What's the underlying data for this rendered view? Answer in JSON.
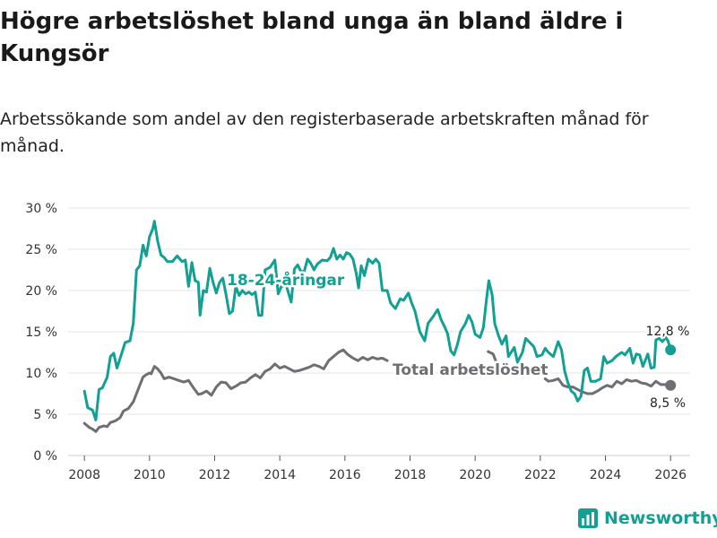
{
  "title": "Högre arbetslöshet bland unga än bland äldre i Kungsör",
  "subtitle": "Arbetssökande som andel av den registerbaserade arbetskraften månad för månad.",
  "brand": "Newsworthy",
  "colors": {
    "youth": "#11a093",
    "total": "#6e6e73",
    "brand": "#12a095"
  },
  "chart_data": {
    "type": "line",
    "x_ticks": [
      "2008",
      "2010",
      "2012",
      "2014",
      "2016",
      "2018",
      "2020",
      "2022",
      "2024",
      "2026"
    ],
    "y_ticks": [
      "0 %",
      "5 %",
      "10 %",
      "15 %",
      "20 %",
      "25 %",
      "30 %"
    ],
    "xlim": [
      2007.5,
      2026.6
    ],
    "ylim": [
      0,
      30
    ],
    "series": [
      {
        "name": "18-24-åringar",
        "label": "18-24-åringar",
        "end_label": "12,8 %",
        "points": [
          [
            2008.0,
            7.8
          ],
          [
            2008.1,
            5.8
          ],
          [
            2008.25,
            5.5
          ],
          [
            2008.35,
            4.3
          ],
          [
            2008.45,
            8.0
          ],
          [
            2008.55,
            8.2
          ],
          [
            2008.7,
            9.5
          ],
          [
            2008.8,
            12.0
          ],
          [
            2008.9,
            12.4
          ],
          [
            2009.0,
            10.6
          ],
          [
            2009.1,
            11.8
          ],
          [
            2009.25,
            13.7
          ],
          [
            2009.4,
            13.9
          ],
          [
            2009.5,
            16.0
          ],
          [
            2009.6,
            22.5
          ],
          [
            2009.7,
            23.0
          ],
          [
            2009.8,
            25.5
          ],
          [
            2009.9,
            24.2
          ],
          [
            2010.0,
            26.5
          ],
          [
            2010.1,
            27.5
          ],
          [
            2010.15,
            28.4
          ],
          [
            2010.25,
            26.0
          ],
          [
            2010.35,
            24.3
          ],
          [
            2010.45,
            24.0
          ],
          [
            2010.55,
            23.5
          ],
          [
            2010.7,
            23.5
          ],
          [
            2010.85,
            24.2
          ],
          [
            2011.0,
            23.5
          ],
          [
            2011.1,
            23.7
          ],
          [
            2011.2,
            20.5
          ],
          [
            2011.3,
            23.4
          ],
          [
            2011.4,
            21.2
          ],
          [
            2011.5,
            21.0
          ],
          [
            2011.55,
            17.0
          ],
          [
            2011.65,
            20.0
          ],
          [
            2011.75,
            19.8
          ],
          [
            2011.85,
            22.7
          ],
          [
            2011.95,
            21.0
          ],
          [
            2012.05,
            19.7
          ],
          [
            2012.15,
            21.0
          ],
          [
            2012.25,
            21.5
          ],
          [
            2012.35,
            19.5
          ],
          [
            2012.45,
            17.2
          ],
          [
            2012.55,
            17.5
          ],
          [
            2012.65,
            20.5
          ],
          [
            2012.75,
            19.4
          ],
          [
            2012.85,
            20.0
          ],
          [
            2012.95,
            19.6
          ],
          [
            2013.05,
            19.8
          ],
          [
            2013.15,
            19.5
          ],
          [
            2013.25,
            19.8
          ],
          [
            2013.35,
            17.0
          ],
          [
            2013.45,
            17.0
          ],
          [
            2013.55,
            22.5
          ],
          [
            2013.7,
            22.8
          ],
          [
            2013.85,
            23.7
          ],
          [
            2013.95,
            19.6
          ],
          [
            2014.05,
            20.5
          ],
          [
            2014.2,
            20.6
          ],
          [
            2014.35,
            18.6
          ],
          [
            2014.45,
            22.6
          ],
          [
            2014.55,
            23.1
          ],
          [
            2014.65,
            22.3
          ],
          [
            2014.75,
            22.3
          ],
          [
            2014.85,
            23.8
          ],
          [
            2014.95,
            23.3
          ],
          [
            2015.05,
            22.5
          ],
          [
            2015.15,
            23.2
          ],
          [
            2015.3,
            23.7
          ],
          [
            2015.45,
            23.6
          ],
          [
            2015.55,
            24.0
          ],
          [
            2015.65,
            25.1
          ],
          [
            2015.75,
            23.8
          ],
          [
            2015.85,
            24.3
          ],
          [
            2015.95,
            23.8
          ],
          [
            2016.05,
            24.6
          ],
          [
            2016.15,
            24.4
          ],
          [
            2016.25,
            23.8
          ],
          [
            2016.35,
            22.0
          ],
          [
            2016.42,
            20.3
          ],
          [
            2016.5,
            23.0
          ],
          [
            2016.6,
            21.8
          ],
          [
            2016.72,
            23.8
          ],
          [
            2016.85,
            23.3
          ],
          [
            2016.95,
            23.8
          ],
          [
            2017.05,
            23.3
          ],
          [
            2017.15,
            20.0
          ],
          [
            2017.3,
            20.0
          ],
          [
            2017.4,
            18.5
          ],
          [
            2017.55,
            17.8
          ],
          [
            2017.7,
            19.0
          ],
          [
            2017.8,
            18.8
          ],
          [
            2017.95,
            19.7
          ],
          [
            2018.05,
            18.5
          ],
          [
            2018.15,
            17.5
          ],
          [
            2018.3,
            15.0
          ],
          [
            2018.45,
            13.9
          ],
          [
            2018.55,
            16.0
          ],
          [
            2018.7,
            16.8
          ],
          [
            2018.85,
            17.7
          ],
          [
            2018.95,
            16.5
          ],
          [
            2019.05,
            15.7
          ],
          [
            2019.15,
            14.8
          ],
          [
            2019.25,
            12.7
          ],
          [
            2019.35,
            12.2
          ],
          [
            2019.45,
            13.4
          ],
          [
            2019.55,
            15.0
          ],
          [
            2019.7,
            16.0
          ],
          [
            2019.8,
            17.0
          ],
          [
            2019.9,
            16.2
          ],
          [
            2020.0,
            14.7
          ],
          [
            2020.15,
            14.3
          ],
          [
            2020.25,
            15.5
          ],
          [
            2020.35,
            19.0
          ],
          [
            2020.42,
            21.2
          ],
          [
            2020.52,
            19.5
          ],
          [
            2020.6,
            16.0
          ],
          [
            2020.72,
            14.5
          ],
          [
            2020.82,
            13.5
          ],
          [
            2020.95,
            14.5
          ],
          [
            2021.02,
            12.0
          ],
          [
            2021.1,
            12.5
          ],
          [
            2021.2,
            13.1
          ],
          [
            2021.3,
            11.3
          ],
          [
            2021.45,
            12.5
          ],
          [
            2021.55,
            14.2
          ],
          [
            2021.65,
            13.8
          ],
          [
            2021.8,
            13.2
          ],
          [
            2021.9,
            12.0
          ],
          [
            2022.05,
            12.2
          ],
          [
            2022.15,
            13.0
          ],
          [
            2022.25,
            12.5
          ],
          [
            2022.4,
            12.0
          ],
          [
            2022.55,
            13.8
          ],
          [
            2022.65,
            12.8
          ],
          [
            2022.75,
            10.2
          ],
          [
            2022.85,
            8.8
          ],
          [
            2022.95,
            7.8
          ],
          [
            2023.05,
            7.5
          ],
          [
            2023.15,
            6.6
          ],
          [
            2023.25,
            7.2
          ],
          [
            2023.35,
            10.3
          ],
          [
            2023.45,
            10.6
          ],
          [
            2023.55,
            9.0
          ],
          [
            2023.7,
            9.0
          ],
          [
            2023.85,
            9.3
          ],
          [
            2023.95,
            12.0
          ],
          [
            2024.05,
            11.2
          ],
          [
            2024.2,
            11.5
          ],
          [
            2024.35,
            12.1
          ],
          [
            2024.5,
            12.5
          ],
          [
            2024.6,
            12.2
          ],
          [
            2024.75,
            13.0
          ],
          [
            2024.85,
            11.2
          ],
          [
            2024.95,
            12.3
          ],
          [
            2025.05,
            12.2
          ],
          [
            2025.15,
            10.8
          ],
          [
            2025.3,
            12.3
          ],
          [
            2025.4,
            10.6
          ],
          [
            2025.5,
            10.7
          ],
          [
            2025.55,
            14.0
          ],
          [
            2025.65,
            14.2
          ],
          [
            2025.75,
            13.8
          ],
          [
            2025.85,
            14.3
          ],
          [
            2025.92,
            13.9
          ],
          [
            2026.0,
            12.8
          ]
        ]
      },
      {
        "name": "Total arbetslöshet",
        "label": "Total arbetslöshet",
        "end_label": "8,5 %",
        "points": [
          [
            2008.0,
            3.9
          ],
          [
            2008.15,
            3.4
          ],
          [
            2008.25,
            3.2
          ],
          [
            2008.35,
            2.9
          ],
          [
            2008.45,
            3.4
          ],
          [
            2008.6,
            3.6
          ],
          [
            2008.7,
            3.5
          ],
          [
            2008.8,
            4.0
          ],
          [
            2008.95,
            4.2
          ],
          [
            2009.1,
            4.6
          ],
          [
            2009.2,
            5.4
          ],
          [
            2009.35,
            5.7
          ],
          [
            2009.5,
            6.5
          ],
          [
            2009.6,
            7.5
          ],
          [
            2009.7,
            8.5
          ],
          [
            2009.8,
            9.5
          ],
          [
            2009.9,
            9.8
          ],
          [
            2010.0,
            10.0
          ],
          [
            2010.05,
            9.9
          ],
          [
            2010.15,
            10.8
          ],
          [
            2010.25,
            10.5
          ],
          [
            2010.35,
            10.0
          ],
          [
            2010.45,
            9.3
          ],
          [
            2010.6,
            9.5
          ],
          [
            2010.75,
            9.3
          ],
          [
            2010.9,
            9.1
          ],
          [
            2011.05,
            8.9
          ],
          [
            2011.2,
            9.1
          ],
          [
            2011.35,
            8.2
          ],
          [
            2011.5,
            7.4
          ],
          [
            2011.6,
            7.5
          ],
          [
            2011.75,
            7.8
          ],
          [
            2011.9,
            7.3
          ],
          [
            2012.05,
            8.3
          ],
          [
            2012.2,
            8.9
          ],
          [
            2012.35,
            8.8
          ],
          [
            2012.5,
            8.1
          ],
          [
            2012.65,
            8.4
          ],
          [
            2012.8,
            8.8
          ],
          [
            2012.95,
            8.9
          ],
          [
            2013.1,
            9.4
          ],
          [
            2013.25,
            9.8
          ],
          [
            2013.4,
            9.4
          ],
          [
            2013.55,
            10.2
          ],
          [
            2013.7,
            10.5
          ],
          [
            2013.85,
            11.1
          ],
          [
            2014.0,
            10.6
          ],
          [
            2014.15,
            10.8
          ],
          [
            2014.3,
            10.5
          ],
          [
            2014.45,
            10.2
          ],
          [
            2014.6,
            10.3
          ],
          [
            2014.75,
            10.5
          ],
          [
            2014.9,
            10.7
          ],
          [
            2015.05,
            11.0
          ],
          [
            2015.2,
            10.8
          ],
          [
            2015.35,
            10.5
          ],
          [
            2015.5,
            11.5
          ],
          [
            2015.65,
            12.0
          ],
          [
            2015.8,
            12.5
          ],
          [
            2015.95,
            12.8
          ],
          [
            2016.1,
            12.2
          ],
          [
            2016.25,
            11.8
          ],
          [
            2016.4,
            11.5
          ],
          [
            2016.55,
            11.9
          ],
          [
            2016.7,
            11.6
          ],
          [
            2016.85,
            11.9
          ],
          [
            2017.0,
            11.7
          ],
          [
            2017.15,
            11.8
          ],
          [
            2017.3,
            11.5
          ],
          [
            2020.4,
            12.6
          ],
          [
            2020.55,
            12.3
          ],
          [
            2020.65,
            11.3
          ],
          [
            2022.15,
            9.3
          ],
          [
            2022.25,
            9.0
          ],
          [
            2022.4,
            9.1
          ],
          [
            2022.55,
            9.3
          ],
          [
            2022.7,
            8.5
          ],
          [
            2022.85,
            8.3
          ],
          [
            2023.0,
            8.3
          ],
          [
            2023.15,
            8.0
          ],
          [
            2023.3,
            7.7
          ],
          [
            2023.45,
            7.5
          ],
          [
            2023.6,
            7.5
          ],
          [
            2023.75,
            7.8
          ],
          [
            2023.9,
            8.2
          ],
          [
            2024.05,
            8.5
          ],
          [
            2024.2,
            8.3
          ],
          [
            2024.35,
            9.0
          ],
          [
            2024.5,
            8.7
          ],
          [
            2024.65,
            9.2
          ],
          [
            2024.8,
            9.0
          ],
          [
            2024.95,
            9.1
          ],
          [
            2025.1,
            8.8
          ],
          [
            2025.25,
            8.7
          ],
          [
            2025.4,
            8.4
          ],
          [
            2025.55,
            9.0
          ],
          [
            2025.7,
            8.6
          ],
          [
            2025.85,
            8.6
          ],
          [
            2026.0,
            8.5
          ]
        ]
      }
    ]
  }
}
